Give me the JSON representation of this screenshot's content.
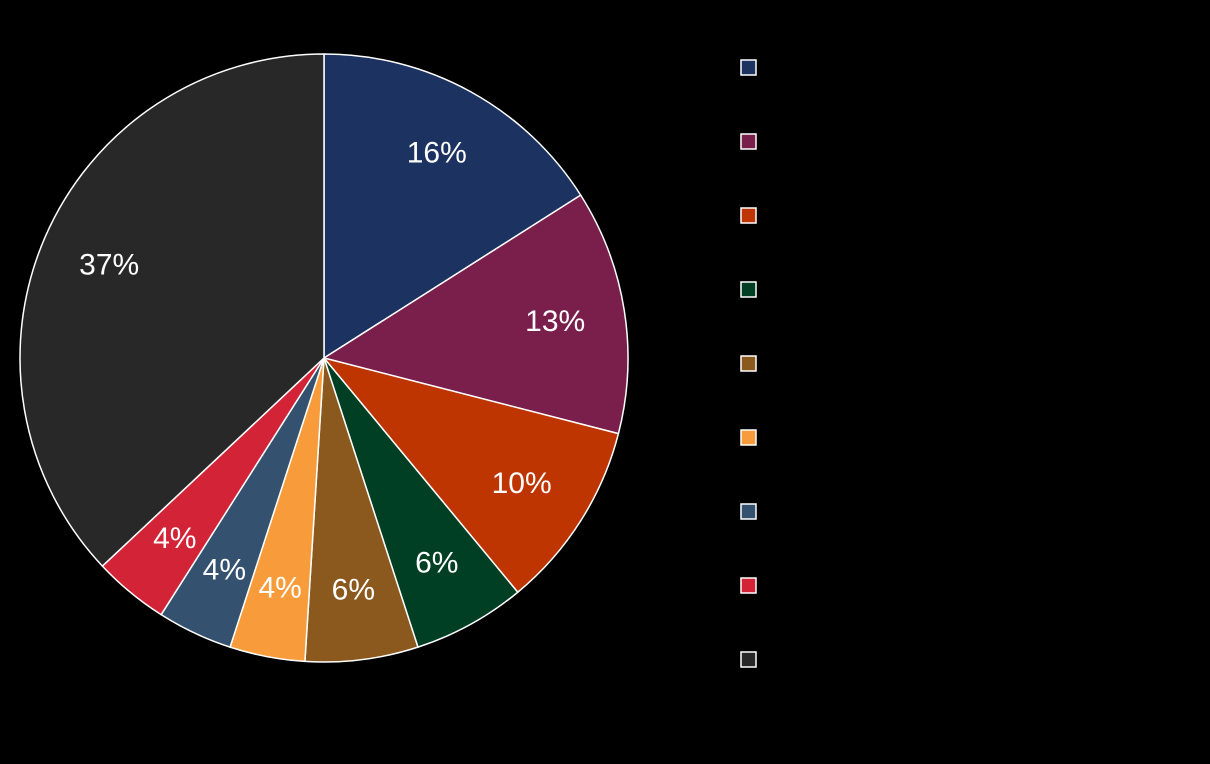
{
  "chart_data": {
    "type": "pie",
    "title": "",
    "slices": [
      {
        "value": 16,
        "label": "16%",
        "color": "#1c3260"
      },
      {
        "value": 13,
        "label": "13%",
        "color": "#7a1f4b"
      },
      {
        "value": 10,
        "label": "10%",
        "color": "#bf3501"
      },
      {
        "value": 6,
        "label": "6%",
        "color": "#003f24"
      },
      {
        "value": 6,
        "label": "6%",
        "color": "#8b591d"
      },
      {
        "value": 4,
        "label": "4%",
        "color": "#f89c3b"
      },
      {
        "value": 4,
        "label": "4%",
        "color": "#34526f"
      },
      {
        "value": 4,
        "label": "4%",
        "color": "#d32336"
      },
      {
        "value": 37,
        "label": "37%",
        "color": "#282828"
      }
    ],
    "legend": {
      "placement": "right",
      "entries": [
        {
          "name": "",
          "color": "#1c3260"
        },
        {
          "name": "",
          "color": "#7a1f4b"
        },
        {
          "name": "",
          "color": "#bf3501"
        },
        {
          "name": "",
          "color": "#003f24"
        },
        {
          "name": "",
          "color": "#8b591d"
        },
        {
          "name": "",
          "color": "#f89c3b"
        },
        {
          "name": "",
          "color": "#34526f"
        },
        {
          "name": "",
          "color": "#d32336"
        },
        {
          "name": "",
          "color": "#282828"
        }
      ]
    },
    "background": "#000000",
    "slice_border_color": "#ffffff"
  }
}
